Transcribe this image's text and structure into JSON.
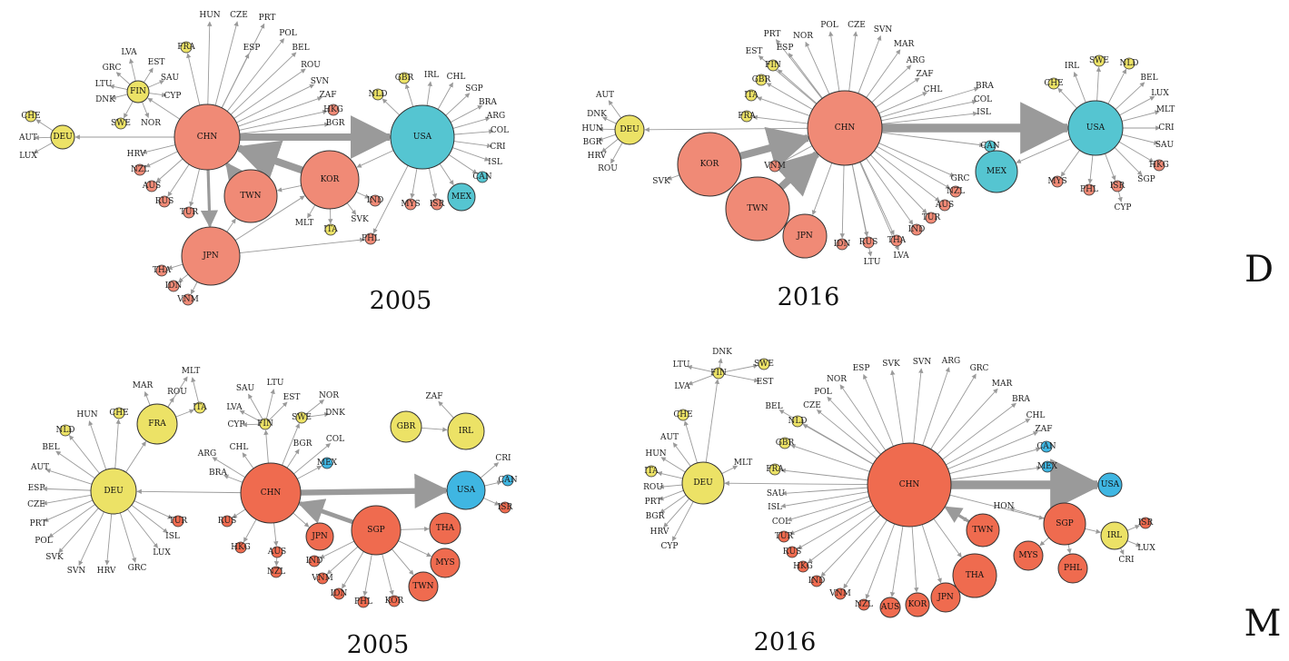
{
  "colors": {
    "europe": "#ece266",
    "asia": "#f08a76",
    "asia_dark": "#ef6b4f",
    "america": "#55c5d1",
    "america_blue": "#3fb6e2",
    "edge": "#9a9a9a"
  },
  "panels": [
    {
      "id": "D2005",
      "year": "2005",
      "hubs": [
        {
          "label": "CHN",
          "group": "asia"
        },
        {
          "label": "USA",
          "group": "america"
        },
        {
          "label": "KOR",
          "group": "asia"
        },
        {
          "label": "TWN",
          "group": "asia"
        },
        {
          "label": "JPN",
          "group": "asia"
        },
        {
          "label": "DEU",
          "group": "europe"
        },
        {
          "label": "FIN",
          "group": "europe"
        },
        {
          "label": "MEX",
          "group": "america"
        }
      ],
      "small_nodes": [
        "FRA",
        "HUN",
        "CZE",
        "PRT",
        "POL",
        "ESP",
        "BEL",
        "ROU",
        "SVN",
        "ZAF",
        "HKG",
        "BGR",
        "EST",
        "LVA",
        "GRC",
        "LTU",
        "SAU",
        "CYP",
        "DNK",
        "SWE",
        "NOR",
        "CHE",
        "AUT",
        "LUX",
        "HRV",
        "NZL",
        "AUS",
        "RUS",
        "TUR",
        "GBR",
        "NLD",
        "IRL",
        "CHL",
        "SGP",
        "BRA",
        "ARG",
        "COL",
        "CRI",
        "ISL",
        "CAN",
        "MYS",
        "ISR",
        "IND",
        "SVK",
        "MLT",
        "ITA",
        "PHL",
        "THA",
        "IDN",
        "VNM"
      ]
    },
    {
      "id": "D2016",
      "year": "2016",
      "hubs": [
        {
          "label": "CHN",
          "group": "asia"
        },
        {
          "label": "USA",
          "group": "america"
        },
        {
          "label": "KOR",
          "group": "asia"
        },
        {
          "label": "TWN",
          "group": "asia"
        },
        {
          "label": "JPN",
          "group": "asia"
        },
        {
          "label": "DEU",
          "group": "europe"
        },
        {
          "label": "MEX",
          "group": "america"
        }
      ],
      "small_nodes": [
        "PRT",
        "NOR",
        "POL",
        "CZE",
        "SVN",
        "MAR",
        "ARG",
        "ZAF",
        "CHL",
        "ESP",
        "EST",
        "FIN",
        "GBR",
        "ITA",
        "FRA",
        "AUT",
        "DNK",
        "HUN",
        "BGR",
        "HRV",
        "ROU",
        "SVK",
        "VNM",
        "BRA",
        "COL",
        "ISL",
        "CAN",
        "GRC",
        "NZL",
        "AUS",
        "TUR",
        "IND",
        "THA",
        "RUS",
        "IDN",
        "LTU",
        "LVA",
        "IRL",
        "SWE",
        "NLD",
        "BEL",
        "LUX",
        "MLT",
        "CRI",
        "SAU",
        "HKG",
        "SGP",
        "CHE",
        "MYS",
        "PHL",
        "ISR",
        "CYP"
      ]
    },
    {
      "id": "M2005",
      "year": "2005",
      "hubs": [
        {
          "label": "DEU",
          "group": "europe"
        },
        {
          "label": "CHN",
          "group": "asia_dark"
        },
        {
          "label": "USA",
          "group": "america_blue"
        },
        {
          "label": "SGP",
          "group": "asia_dark"
        },
        {
          "label": "FRA",
          "group": "europe"
        },
        {
          "label": "GBR",
          "group": "europe"
        },
        {
          "label": "IRL",
          "group": "europe"
        },
        {
          "label": "JPN",
          "group": "asia_dark"
        },
        {
          "label": "THA",
          "group": "asia_dark"
        },
        {
          "label": "MYS",
          "group": "asia_dark"
        },
        {
          "label": "TWN",
          "group": "asia_dark"
        }
      ],
      "small_nodes": [
        "MLT",
        "MAR",
        "ROU",
        "ITA",
        "HUN",
        "CHE",
        "NLD",
        "BEL",
        "AUT",
        "ESP",
        "CZE",
        "PRT",
        "POL",
        "SVK",
        "SVN",
        "HRV",
        "GRC",
        "LUX",
        "ISL",
        "TUR",
        "SAU",
        "LTU",
        "LVA",
        "CYP",
        "FIN",
        "EST",
        "NOR",
        "SWE",
        "DNK",
        "ARG",
        "CHL",
        "BGR",
        "COL",
        "BRA",
        "MEX",
        "ZAF",
        "CRI",
        "CAN",
        "ISR",
        "RUS",
        "HKG",
        "AUS",
        "NZL",
        "IND",
        "VNM",
        "IDN",
        "PHL",
        "KOR"
      ]
    },
    {
      "id": "M2016",
      "year": "2016",
      "hubs": [
        {
          "label": "CHN",
          "group": "asia_dark"
        },
        {
          "label": "DEU",
          "group": "europe"
        },
        {
          "label": "USA",
          "group": "america_blue"
        },
        {
          "label": "SGP",
          "group": "asia_dark"
        },
        {
          "label": "THA",
          "group": "asia_dark"
        },
        {
          "label": "TWN",
          "group": "asia_dark"
        },
        {
          "label": "JPN",
          "group": "asia_dark"
        },
        {
          "label": "KOR",
          "group": "asia_dark"
        },
        {
          "label": "AUS",
          "group": "asia_dark"
        },
        {
          "label": "MYS",
          "group": "asia_dark"
        },
        {
          "label": "PHL",
          "group": "asia_dark"
        },
        {
          "label": "IRL",
          "group": "europe"
        }
      ],
      "small_nodes": [
        "LTU",
        "DNK",
        "SWE",
        "FIN",
        "EST",
        "LVA",
        "CHE",
        "AUT",
        "HUN",
        "ITA",
        "ROU",
        "PRT",
        "BGR",
        "HRV",
        "CYP",
        "MLT",
        "FRA",
        "GBR",
        "NLD",
        "BEL",
        "CZE",
        "POL",
        "NOR",
        "ESP",
        "SVK",
        "SVN",
        "ARG",
        "GRC",
        "MAR",
        "BRA",
        "CHL",
        "ZAF",
        "CAN",
        "MEX",
        "SAU",
        "ISL",
        "COL",
        "TUR",
        "RUS",
        "HKG",
        "IND",
        "VNM",
        "NZL",
        "HON",
        "ISR",
        "LUX",
        "CRI"
      ]
    }
  ],
  "row_labels": {
    "top": "D",
    "bottom": "M"
  }
}
